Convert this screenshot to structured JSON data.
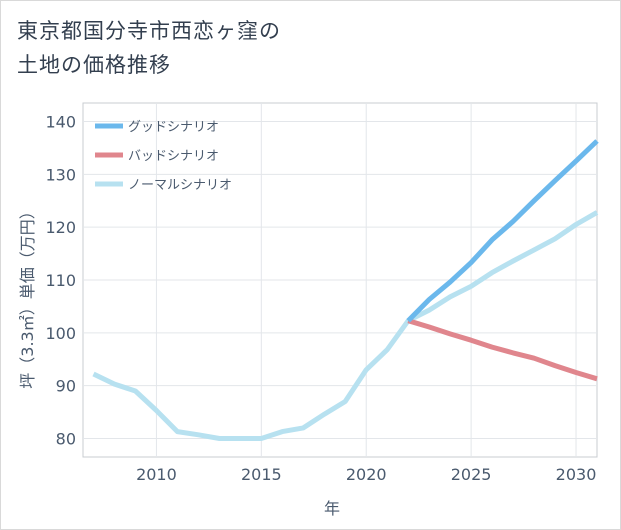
{
  "title_lines": [
    "東京都国分寺市西恋ヶ窪の",
    "土地の価格推移"
  ],
  "chart_data": {
    "type": "line",
    "title": "東京都国分寺市西恋ヶ窪の土地の価格推移",
    "xlabel": "年",
    "ylabel": "坪（3.3㎡）単価（万円）",
    "xlim": [
      2006.5,
      2031
    ],
    "ylim": [
      76.5,
      143.5
    ],
    "xticks": [
      2010,
      2015,
      2020,
      2025,
      2030
    ],
    "yticks": [
      80,
      90,
      100,
      110,
      120,
      130,
      140
    ],
    "legend_position": "top-left",
    "grid": true,
    "series": [
      {
        "name": "グッドシナリオ",
        "color": "#6bb8ec",
        "x": [
          2022,
          2023,
          2024,
          2025,
          2026,
          2027,
          2028,
          2029,
          2030,
          2031
        ],
        "values": [
          102.3,
          106.3,
          109.6,
          113.3,
          117.6,
          121.1,
          125,
          128.8,
          132.5,
          136.3
        ]
      },
      {
        "name": "バッドシナリオ",
        "color": "#e0868d",
        "x": [
          2022,
          2023,
          2024,
          2025,
          2026,
          2027,
          2028,
          2029,
          2030,
          2031
        ],
        "values": [
          102.3,
          101.1,
          99.8,
          98.6,
          97.3,
          96.2,
          95.2,
          93.8,
          92.5,
          91.3
        ]
      },
      {
        "name": "ノーマルシナリオ",
        "color": "#b7e1f0",
        "x": [
          2007,
          2008,
          2009,
          2010,
          2011,
          2012,
          2013,
          2014,
          2015,
          2016,
          2017,
          2018,
          2019,
          2020,
          2021,
          2022,
          2023,
          2024,
          2025,
          2026,
          2027,
          2028,
          2029,
          2030,
          2031
        ],
        "values": [
          92.2,
          90.3,
          89,
          85.3,
          81.3,
          80.7,
          80,
          80,
          80,
          81.3,
          82,
          84.6,
          87,
          93,
          96.8,
          102.3,
          104.3,
          106.8,
          108.8,
          111.4,
          113.6,
          115.7,
          117.8,
          120.5,
          122.8
        ]
      }
    ]
  }
}
